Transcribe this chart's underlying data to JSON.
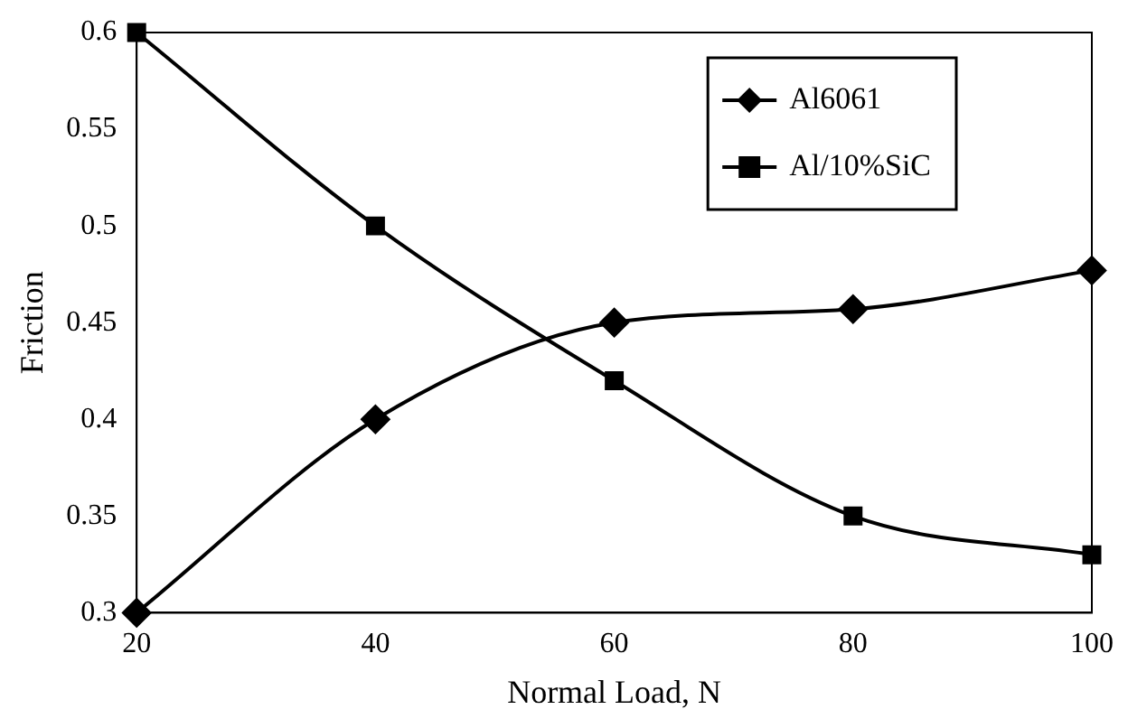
{
  "chart_data": {
    "type": "line",
    "xlabel": "Normal Load, N",
    "ylabel": "Friction",
    "x": [
      20,
      40,
      60,
      80,
      100
    ],
    "xlim": [
      20,
      100
    ],
    "xticks": [
      20,
      40,
      60,
      80,
      100
    ],
    "ylim": [
      0.3,
      0.6
    ],
    "yticks": [
      0.3,
      0.35,
      0.4,
      0.45,
      0.5,
      0.55,
      0.6
    ],
    "grid": false,
    "legend": "top right",
    "line_style": "solid",
    "series": [
      {
        "name": "Al6061",
        "color": "#000000",
        "marker": "diamond",
        "values": [
          0.3,
          0.4,
          0.45,
          0.457,
          0.477
        ]
      },
      {
        "name": "Al/10%SiC",
        "color": "#000000",
        "marker": "square",
        "values": [
          0.6,
          0.5,
          0.42,
          0.35,
          0.33
        ]
      }
    ]
  }
}
